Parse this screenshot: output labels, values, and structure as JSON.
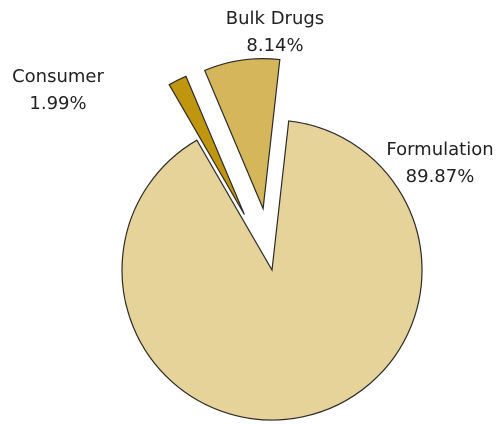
{
  "chart_data": {
    "type": "pie",
    "title": "",
    "series": [
      {
        "values": [
          89.87,
          1.99,
          8.14
        ],
        "categories": [
          "Formulation",
          "Consumer",
          "Bulk Drugs"
        ],
        "labels": [
          "89.87%",
          "1.99%",
          "8.14%"
        ],
        "colors": [
          "#E6D39A",
          "#C0960E",
          "#D6B65A"
        ]
      }
    ],
    "exploded": [
      "Consumer",
      "Bulk Drugs"
    ],
    "legend": "none"
  }
}
